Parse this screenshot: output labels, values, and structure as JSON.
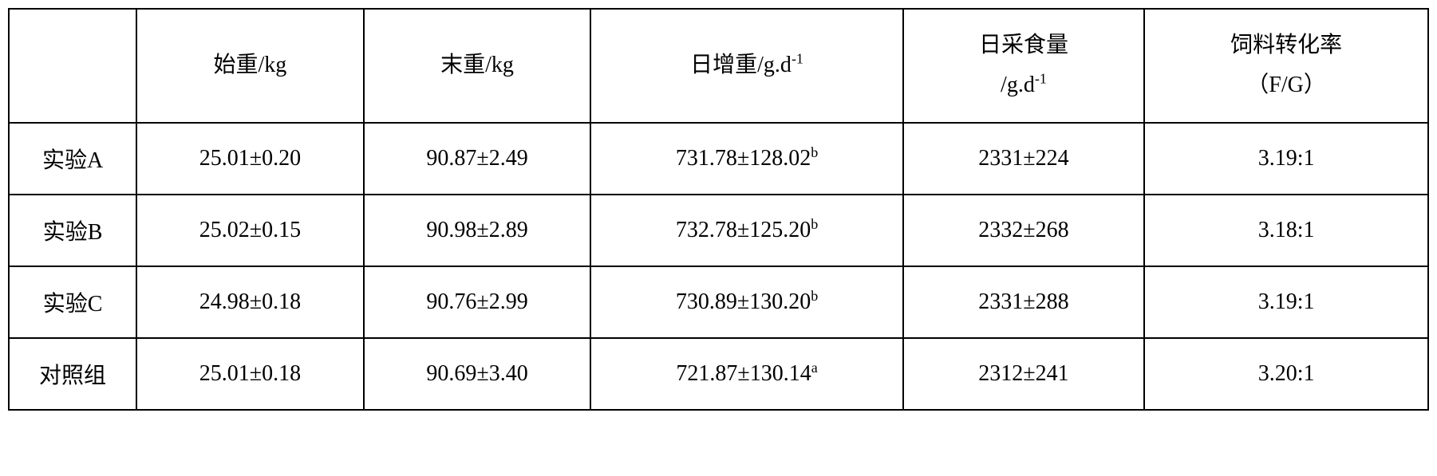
{
  "table": {
    "type": "table",
    "background_color": "#ffffff",
    "border_color": "#000000",
    "text_color": "#000000",
    "font_family": "SimSun",
    "header_fontsize": 28,
    "cell_fontsize": 28,
    "border_width": 2,
    "columns": [
      {
        "key": "label",
        "header_html": "",
        "width_pct": 9,
        "align": "center"
      },
      {
        "key": "start_weight",
        "header_html": "始重/kg",
        "width_pct": 16,
        "align": "center"
      },
      {
        "key": "end_weight",
        "header_html": "末重/kg",
        "width_pct": 16,
        "align": "center"
      },
      {
        "key": "daily_gain",
        "header_html": "日增重/g.d<sup>-1</sup>",
        "width_pct": 22,
        "align": "center"
      },
      {
        "key": "daily_intake",
        "header_html": "日采食量<br>/g.d<sup>-1</sup>",
        "width_pct": 17,
        "align": "center"
      },
      {
        "key": "fcr",
        "header_html": "饲料转化率<br>（F/G）",
        "width_pct": 20,
        "align": "center"
      }
    ],
    "headers": {
      "label": "",
      "start_weight": "始重/kg",
      "end_weight": "末重/kg",
      "daily_gain_prefix": "日增重/g.d",
      "daily_gain_sup": "-1",
      "daily_intake_line1": "日采食量",
      "daily_intake_line2_prefix": "/g.d",
      "daily_intake_sup": "-1",
      "fcr_line1": "饲料转化率",
      "fcr_line2": "（F/G）"
    },
    "rows": [
      {
        "label": "实验A",
        "start_weight": "25.01±0.20",
        "end_weight": "90.87±2.49",
        "daily_gain_value": "731.78±128.02",
        "daily_gain_sup": "b",
        "daily_intake": "2331±224",
        "fcr": "3.19:1"
      },
      {
        "label": "实验B",
        "start_weight": "25.02±0.15",
        "end_weight": "90.98±2.89",
        "daily_gain_value": "732.78±125.20",
        "daily_gain_sup": "b",
        "daily_intake": "2332±268",
        "fcr": "3.18:1"
      },
      {
        "label": "实验C",
        "start_weight": "24.98±0.18",
        "end_weight": "90.76±2.99",
        "daily_gain_value": "730.89±130.20",
        "daily_gain_sup": "b",
        "daily_intake": "2331±288",
        "fcr": "3.19:1"
      },
      {
        "label": "对照组",
        "start_weight": "25.01±0.18",
        "end_weight": "90.69±3.40",
        "daily_gain_value": "721.87±130.14",
        "daily_gain_sup": "a",
        "daily_intake": "2312±241",
        "fcr": "3.20:1"
      }
    ]
  }
}
